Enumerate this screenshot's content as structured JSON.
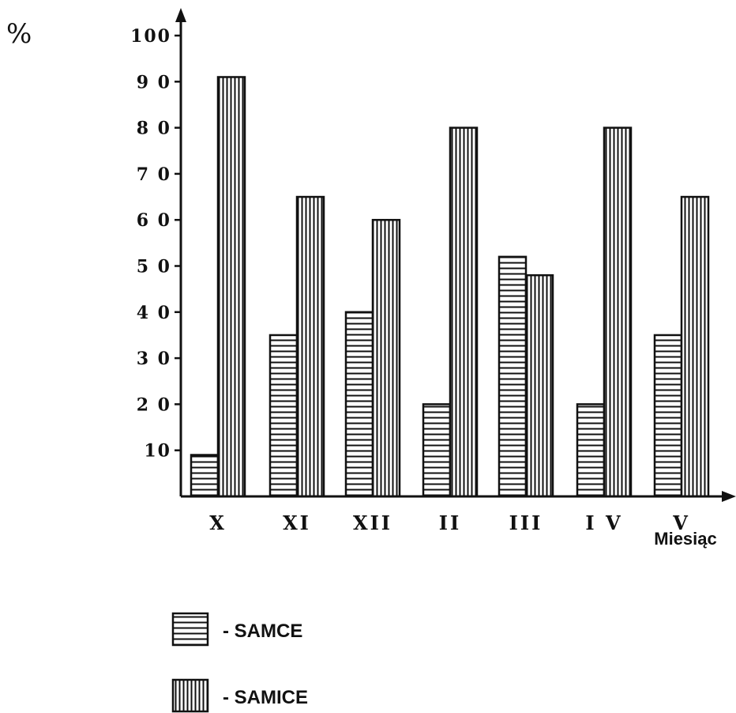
{
  "chart_data": {
    "type": "bar",
    "unit_label": "%",
    "xlabel": "Miesiąc",
    "ylabel": "",
    "ylim": [
      0,
      100
    ],
    "y_ticks": [
      10,
      20,
      30,
      40,
      50,
      60,
      70,
      80,
      90,
      100
    ],
    "y_tick_labels": [
      "10",
      "2 0",
      "3 0",
      "4 0",
      "5 0",
      "6 0",
      "7 0",
      "8 0",
      "9 0",
      "100"
    ],
    "categories": [
      "X",
      "XI",
      "XII",
      "II",
      "III",
      "I V",
      "V"
    ],
    "series": [
      {
        "name": "- SAMCE",
        "pattern": "horizontal-stripes",
        "values": [
          9,
          35,
          40,
          20,
          52,
          20,
          35
        ]
      },
      {
        "name": "- SAMICE",
        "pattern": "vertical-stripes",
        "values": [
          91,
          65,
          60,
          80,
          48,
          80,
          65
        ]
      }
    ],
    "grid": false,
    "legend": "bottom-left"
  }
}
